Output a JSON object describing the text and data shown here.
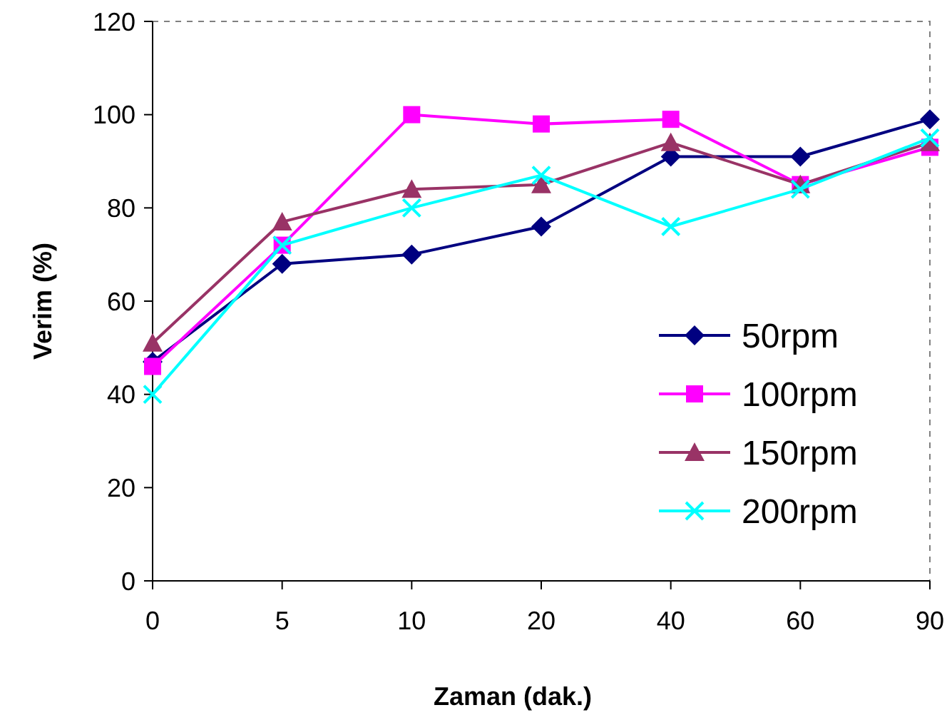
{
  "chart_data": {
    "type": "line",
    "xlabel": "Zaman (dak.)",
    "ylabel": "Verim (%)",
    "categories": [
      "0",
      "5",
      "10",
      "20",
      "40",
      "60",
      "90"
    ],
    "ylim": [
      0,
      120
    ],
    "yticks": [
      0,
      20,
      40,
      60,
      80,
      100,
      120
    ],
    "legend": "right",
    "grid": false,
    "line_style": "solid",
    "series": [
      {
        "name": "50rpm",
        "color": "#000080",
        "marker": "diamond",
        "values": [
          47,
          68,
          70,
          76,
          91,
          91,
          99
        ]
      },
      {
        "name": "100rpm",
        "color": "#ff00ff",
        "marker": "square",
        "values": [
          46,
          72,
          100,
          98,
          99,
          85,
          93
        ]
      },
      {
        "name": "150rpm",
        "color": "#993366",
        "marker": "triangle",
        "values": [
          51,
          77,
          84,
          85,
          94,
          85,
          94
        ]
      },
      {
        "name": "200rpm",
        "color": "#00ffff",
        "marker": "cross",
        "values": [
          40,
          72,
          80,
          87,
          76,
          84,
          95
        ]
      }
    ]
  }
}
